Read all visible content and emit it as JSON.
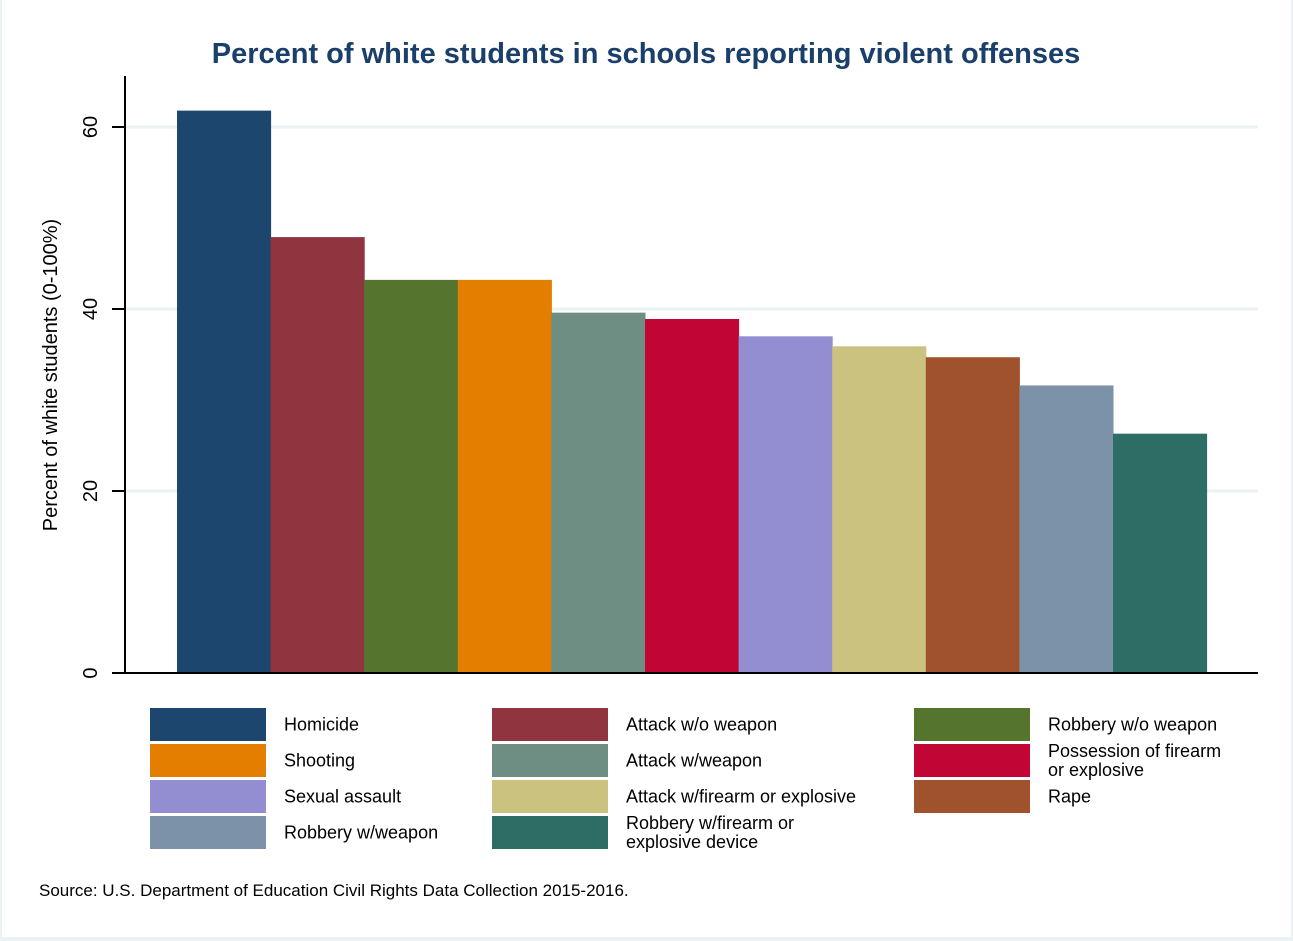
{
  "chart_data": {
    "type": "bar",
    "title": "Percent of white students in schools reporting violent offenses",
    "xlabel": "",
    "ylabel": "Percent of white students (0-100%)",
    "ylim": [
      0,
      65
    ],
    "yticks": [
      0,
      20,
      40,
      60
    ],
    "ytick_labels": [
      "0",
      "20",
      "40",
      "60"
    ],
    "grid": true,
    "legend_position": "bottom",
    "categories": [
      "Homicide",
      "Attack w/o weapon",
      "Robbery w/o weapon",
      "Shooting",
      "Attack w/weapon",
      "Possession of firearm or explosive",
      "Sexual assault",
      "Attack w/firearm or explosive",
      "Rape",
      "Robbery w/weapon",
      "Robbery w/firearm or explosive device"
    ],
    "values": [
      61.8,
      47.9,
      43.2,
      43.2,
      39.6,
      38.9,
      37.0,
      35.9,
      34.7,
      31.6,
      26.3
    ],
    "colors": [
      "#1c466e",
      "#90353f",
      "#55752f",
      "#e37e00",
      "#6e8e84",
      "#c10534",
      "#938dd2",
      "#cac27e",
      "#a0522d",
      "#7b92a8",
      "#2d6d66"
    ],
    "legend": [
      {
        "label_lines": [
          "Homicide"
        ],
        "series_index": 0
      },
      {
        "label_lines": [
          "Attack w/o weapon"
        ],
        "series_index": 1
      },
      {
        "label_lines": [
          "Robbery w/o weapon"
        ],
        "series_index": 2
      },
      {
        "label_lines": [
          "Shooting"
        ],
        "series_index": 3
      },
      {
        "label_lines": [
          "Attack w/weapon"
        ],
        "series_index": 4
      },
      {
        "label_lines": [
          "Possession of firearm",
          "or explosive"
        ],
        "series_index": 5
      },
      {
        "label_lines": [
          "Sexual assault"
        ],
        "series_index": 6
      },
      {
        "label_lines": [
          "Attack w/firearm or explosive"
        ],
        "series_index": 7
      },
      {
        "label_lines": [
          "Rape"
        ],
        "series_index": 8
      },
      {
        "label_lines": [
          "Robbery w/weapon"
        ],
        "series_index": 9
      },
      {
        "label_lines": [
          "Robbery w/firearm or",
          "explosive device"
        ],
        "series_index": 10
      }
    ],
    "note": "Source: U.S. Department of Education Civil Rights Data Collection 2015-2016."
  }
}
